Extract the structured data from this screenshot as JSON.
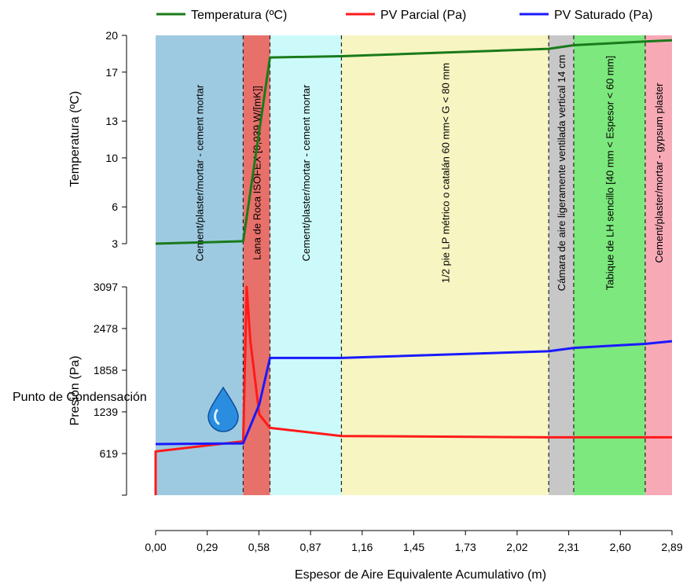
{
  "chart_data": {
    "type": "line",
    "xlabel": "Espesor de Aire Equivalente Acumulativo (m)",
    "x_ticks": [
      "0,00",
      "0,29",
      "0,58",
      "0,87",
      "1,16",
      "1,45",
      "1,73",
      "2,02",
      "2,31",
      "2,60",
      "2,89"
    ],
    "xlim": [
      0,
      2.89
    ],
    "temperature_panel": {
      "ylabel": "Temperatura (ºC)",
      "y_ticks": [
        "3",
        "6",
        "10",
        "13",
        "17",
        "20"
      ],
      "ylim": [
        3,
        20
      ]
    },
    "pressure_panel": {
      "ylabel": "Presión (Pa)",
      "y_ticks": [
        "619",
        "1239",
        "1858",
        "2478",
        "3097"
      ],
      "ylim": [
        0,
        3097
      ]
    },
    "legend": [
      {
        "name": "Temperatura (ºC)",
        "color": "#1a7a1a"
      },
      {
        "name": "PV Parcial (Pa)",
        "color": "#ff1a1a"
      },
      {
        "name": "PV Saturado (Pa)",
        "color": "#1a1aff"
      }
    ],
    "layers": [
      {
        "label": "Cement/plaster/mortar - cement  mortar",
        "x0": 0.0,
        "x1": 0.49,
        "color": "#9ecae1"
      },
      {
        "label": "Lana de Roca ISOFEX [0,039 W/[mK]]",
        "x0": 0.49,
        "x1": 0.64,
        "color": "#e8706a"
      },
      {
        "label": "Cement/plaster/mortar - cement  mortar",
        "x0": 0.64,
        "x1": 1.04,
        "color": "#ccfafa"
      },
      {
        "label": "1/2 pie LP métrico o catalán 60 mm< G < 80 mm",
        "x0": 1.04,
        "x1": 2.2,
        "color": "#f7f5c2"
      },
      {
        "label": "Cámara de aire ligeramente ventilada vertical 14 cm",
        "x0": 2.2,
        "x1": 2.34,
        "color": "#c7c7c7"
      },
      {
        "label": "Tabique de LH sencillo [40 mm < Espesor < 60 mm]",
        "x0": 2.34,
        "x1": 2.74,
        "color": "#7de87d"
      },
      {
        "label": "Cement/plaster/mortar - gypsum plaster",
        "x0": 2.74,
        "x1": 2.89,
        "color": "#f7a9b6"
      }
    ],
    "series": [
      {
        "name": "Temperatura (ºC)",
        "panel": "temperature",
        "x": [
          0.0,
          0.49,
          0.64,
          1.04,
          2.2,
          2.34,
          2.74,
          2.89
        ],
        "y": [
          3.0,
          3.2,
          18.2,
          18.3,
          18.9,
          19.2,
          19.5,
          19.6
        ]
      },
      {
        "name": "PV Parcial (Pa)",
        "panel": "pressure",
        "x": [
          0.0,
          0.0,
          0.49,
          0.51,
          0.53,
          0.58,
          0.64,
          1.04,
          2.2,
          2.34,
          2.74,
          2.89
        ],
        "y": [
          0,
          650,
          800,
          3097,
          2300,
          1200,
          1000,
          880,
          860,
          860,
          860,
          860
        ]
      },
      {
        "name": "PV Saturado (Pa)",
        "panel": "pressure",
        "x": [
          0.0,
          0.49,
          0.58,
          0.64,
          1.04,
          2.2,
          2.34,
          2.74,
          2.89
        ],
        "y": [
          760,
          770,
          1350,
          2040,
          2040,
          2140,
          2190,
          2250,
          2290
        ]
      }
    ],
    "annotation": "Punto de Condensación",
    "annotation_x": 0.49,
    "annotation_y": 780
  }
}
